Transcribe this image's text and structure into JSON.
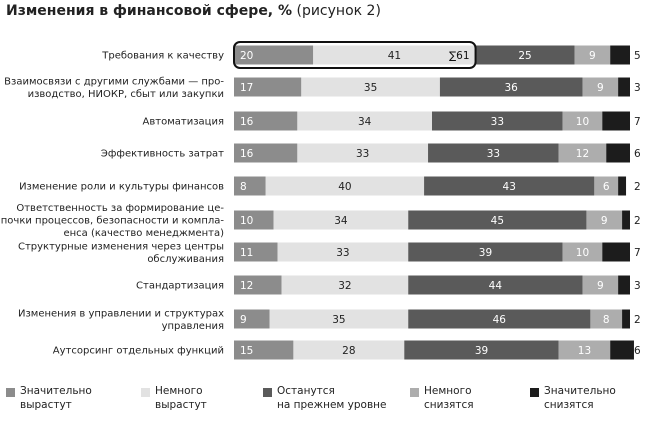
{
  "title": {
    "bold": "Изменения в финансовой сфере, %",
    "sub": "(рисунок 2)"
  },
  "chart_data": {
    "type": "bar",
    "orientation": "horizontal",
    "stacked": true,
    "xlim": [
      0,
      100
    ],
    "categories": [
      "Требования к качеству",
      "Взаимосвязи с другими службами — про-\nизводство, НИОКР, сбыт или закупки",
      "Автоматизация",
      "Эффективность затрат",
      "Изменение роли и культуры финансов",
      "Ответственность за формирование це-\nпочки процессов, безопасности и компла-\nенса (качество менеджмента)",
      "Структурные изменения через центры\nобслуживания",
      "Стандартизация",
      "Изменения в управлении и структурах\nуправления",
      "Аутсорсинг отдельных функций"
    ],
    "series": [
      {
        "name": "Значительно\nвырастут",
        "color": "#8c8c8c",
        "values": [
          20,
          17,
          16,
          16,
          8,
          10,
          11,
          12,
          9,
          15
        ]
      },
      {
        "name": "Немного\nвырастут",
        "color": "#e2e2e2",
        "values": [
          41,
          35,
          34,
          33,
          40,
          34,
          33,
          32,
          35,
          28
        ]
      },
      {
        "name": "Останутся\nна прежнем уровне",
        "color": "#5a5a5a",
        "values": [
          25,
          36,
          33,
          33,
          43,
          45,
          39,
          44,
          46,
          39
        ]
      },
      {
        "name": "Немного\nснизятся",
        "color": "#adadad",
        "values": [
          9,
          9,
          10,
          12,
          6,
          9,
          10,
          9,
          8,
          13
        ]
      },
      {
        "name": "Значительно\nснизятся",
        "color": "#1c1c1c",
        "values": [
          5,
          3,
          7,
          6,
          2,
          2,
          7,
          3,
          2,
          6
        ]
      }
    ],
    "annotation": {
      "text": "∑61",
      "category_index": 0
    }
  }
}
